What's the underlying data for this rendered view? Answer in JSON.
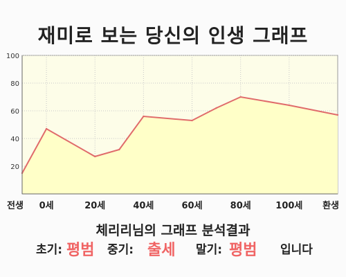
{
  "header": {
    "title": "재미로 보는 당신의 인생 그래프"
  },
  "chart_data": {
    "type": "area",
    "x": [
      -10,
      0,
      20,
      30,
      40,
      60,
      70,
      80,
      100,
      120
    ],
    "y": [
      15,
      47,
      27,
      32,
      56,
      53,
      62,
      70,
      64,
      57
    ],
    "xticks": [
      {
        "x": -10,
        "label": "전생"
      },
      {
        "x": 0,
        "label": "0세"
      },
      {
        "x": 20,
        "label": "20세"
      },
      {
        "x": 40,
        "label": "40세"
      },
      {
        "x": 60,
        "label": "60세"
      },
      {
        "x": 80,
        "label": "80세"
      },
      {
        "x": 100,
        "label": "100세"
      },
      {
        "x": 120,
        "label": "환생"
      }
    ],
    "yticks": [
      20,
      40,
      60,
      80,
      100
    ],
    "xlim": [
      -10,
      120
    ],
    "ylim": [
      0,
      100
    ],
    "grid": true,
    "colors": {
      "line": "#e06b6b",
      "fill": "#ffffc8",
      "plot_bg": "#fdfde8",
      "grid": "#c8c8c8"
    }
  },
  "summary": {
    "text": "체리리님의 그래프 분석결과",
    "early_label": "초기:",
    "early_value": "평범",
    "middle_label": "중기:",
    "middle_value": "출세",
    "late_label": "말기:",
    "late_value": "평범",
    "suffix": "입니다"
  }
}
